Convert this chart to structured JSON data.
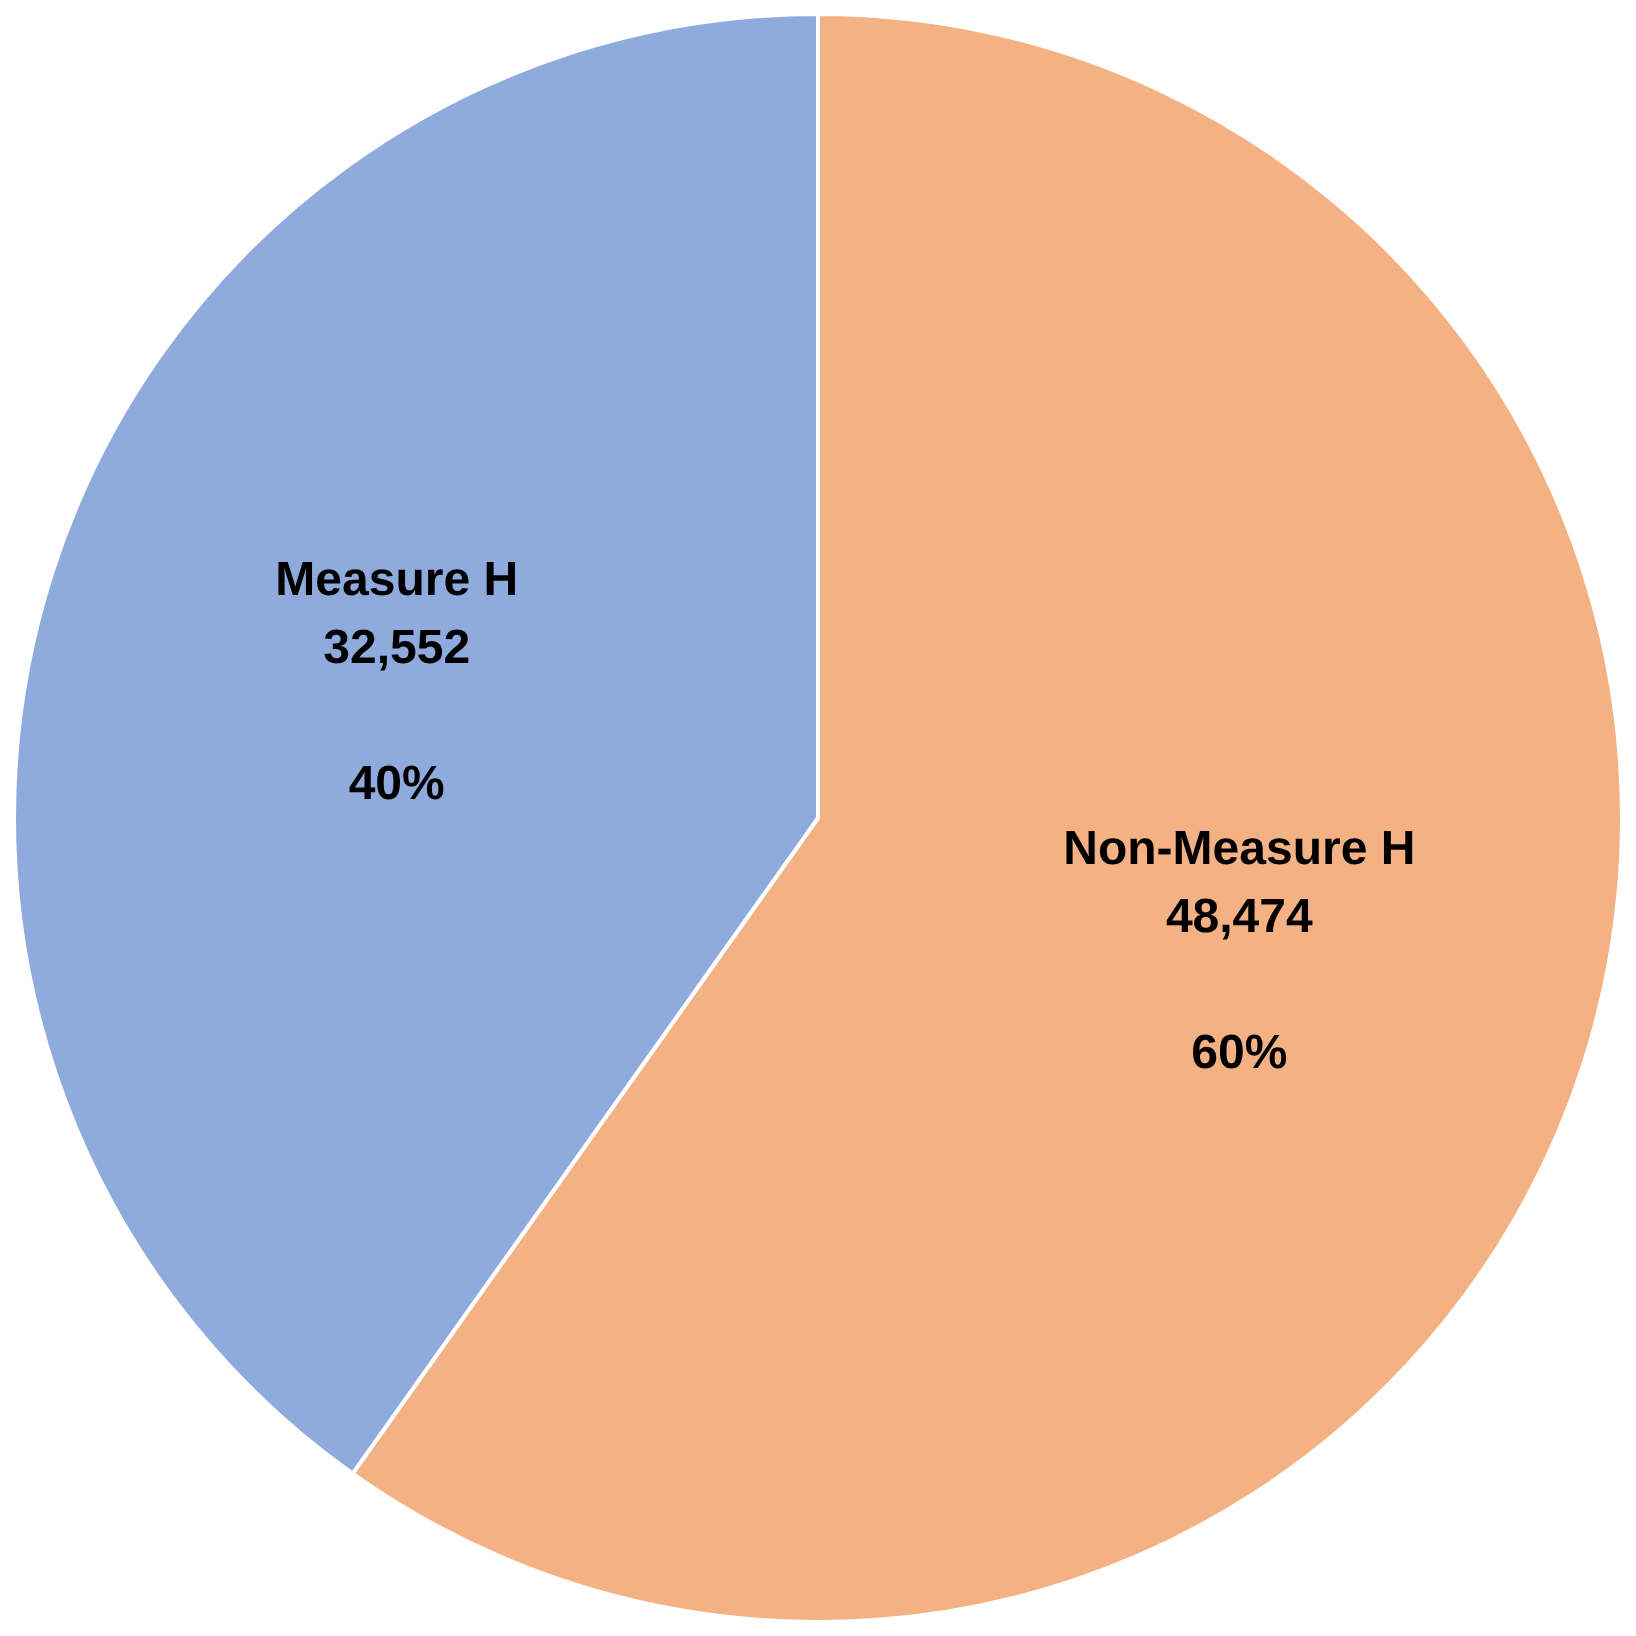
{
  "chart_data": {
    "type": "pie",
    "categories": [
      "Non-Measure H",
      "Measure H"
    ],
    "values": [
      48474,
      32552
    ],
    "colors": [
      "#f4b183",
      "#8faadc"
    ],
    "value_labels": [
      "48,474",
      "32,552"
    ],
    "annotations": [
      {
        "text": "60%",
        "x": "Non-Measure H"
      },
      {
        "text": "40%",
        "x": "Measure H"
      }
    ],
    "legend": false
  }
}
